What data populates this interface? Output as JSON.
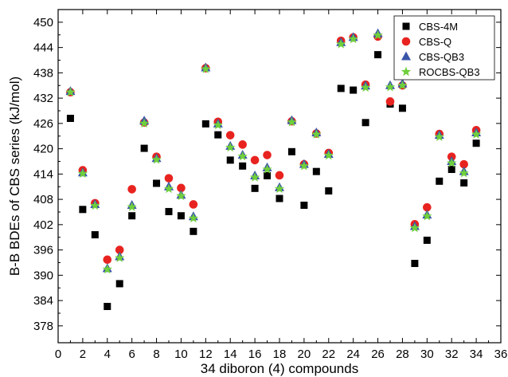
{
  "chart_data": {
    "type": "scatter",
    "title": "",
    "xlabel": "34 diboron (4) compounds",
    "ylabel": "B-B BDEs of CBS series (kJ/mol)",
    "xlim": [
      0,
      36
    ],
    "ylim": [
      374,
      453
    ],
    "xticks": [
      0,
      2,
      4,
      6,
      8,
      10,
      12,
      14,
      16,
      18,
      20,
      22,
      24,
      26,
      28,
      30,
      32,
      34,
      36
    ],
    "yticks": [
      378,
      384,
      390,
      396,
      402,
      408,
      414,
      420,
      426,
      432,
      438,
      444,
      450
    ],
    "grid": false,
    "legend_position": "top-right",
    "x": [
      1,
      2,
      3,
      4,
      5,
      6,
      7,
      8,
      9,
      10,
      11,
      12,
      13,
      14,
      15,
      16,
      17,
      18,
      19,
      20,
      21,
      22,
      23,
      24,
      25,
      26,
      27,
      28,
      29,
      30,
      31,
      32,
      33,
      34
    ],
    "series": [
      {
        "name": "CBS-4M",
        "color": "#000000",
        "marker": "square",
        "values": [
          427.2,
          405.6,
          399.6,
          382.6,
          388.0,
          404.1,
          420.1,
          411.8,
          405.1,
          404.1,
          400.4,
          425.9,
          423.3,
          417.3,
          415.9,
          410.6,
          413.6,
          408.2,
          419.3,
          406.6,
          414.6,
          410.0,
          434.3,
          433.9,
          426.2,
          442.3,
          430.6,
          429.6,
          392.8,
          398.3,
          412.3,
          415.1,
          411.9,
          421.3
        ]
      },
      {
        "name": "CBS-Q",
        "color": "#e8231f",
        "marker": "circle",
        "values": [
          433.4,
          414.9,
          407.1,
          393.7,
          396.0,
          410.4,
          426.2,
          418.1,
          413.0,
          410.7,
          406.8,
          439.1,
          426.4,
          423.2,
          421.0,
          417.3,
          418.5,
          413.7,
          426.5,
          416.3,
          423.6,
          419.0,
          445.6,
          446.4,
          435.2,
          446.6,
          431.2,
          435.0,
          402.1,
          406.1,
          423.5,
          418.1,
          416.3,
          424.4
        ]
      },
      {
        "name": "CBS-QB3",
        "color": "#3a55a8",
        "marker": "triangle",
        "values": [
          433.6,
          414.3,
          406.8,
          391.6,
          394.4,
          406.6,
          426.6,
          417.7,
          411.0,
          409.0,
          403.9,
          439.2,
          425.9,
          420.6,
          418.5,
          413.6,
          415.5,
          410.8,
          426.7,
          416.3,
          423.8,
          418.7,
          445.2,
          446.4,
          434.9,
          447.3,
          435.0,
          435.4,
          401.6,
          404.3,
          423.2,
          417.0,
          414.6,
          423.8
        ]
      },
      {
        "name": "ROCBS-QB3",
        "color": "#6fcf3c",
        "marker": "star",
        "values": [
          433.4,
          414.1,
          406.5,
          391.4,
          394.1,
          406.2,
          426.0,
          417.4,
          410.5,
          408.8,
          403.5,
          438.9,
          425.6,
          420.3,
          418.2,
          413.2,
          415.1,
          410.5,
          426.3,
          415.9,
          423.4,
          418.4,
          444.8,
          446.0,
          434.5,
          446.9,
          434.6,
          435.0,
          401.2,
          404.0,
          422.8,
          416.6,
          414.2,
          423.4
        ]
      }
    ]
  }
}
